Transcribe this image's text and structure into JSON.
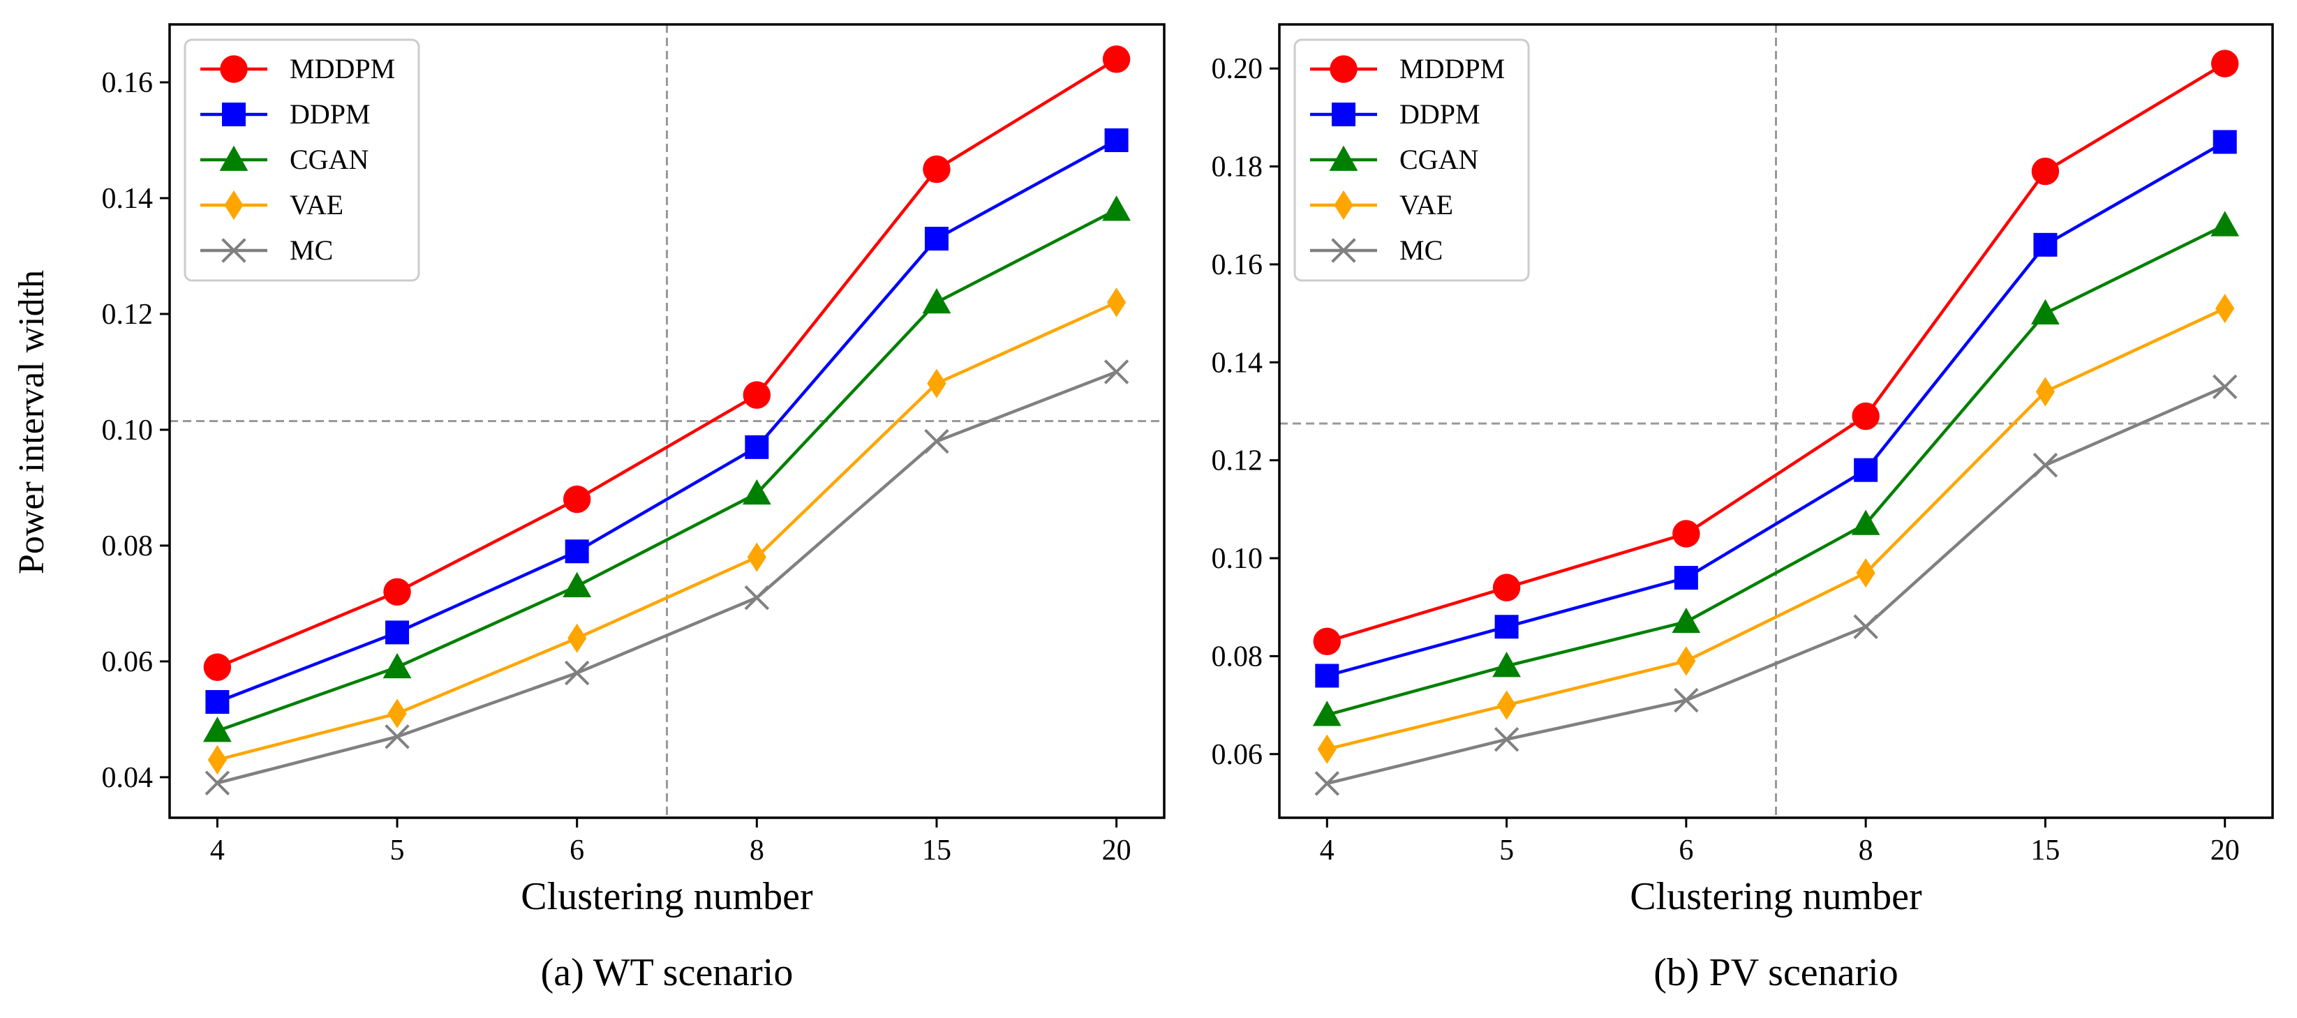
{
  "figure": {
    "ylabel": "Power interval width",
    "legend_position": "upper left"
  },
  "chart_data": [
    {
      "type": "line",
      "caption": "(a) WT scenario",
      "xlabel": "Clustering number",
      "ylabel": "Power interval width",
      "categories": [
        "4",
        "5",
        "6",
        "8",
        "15",
        "20"
      ],
      "ylim": [
        0.033,
        0.17
      ],
      "yticks": [
        0.04,
        0.06,
        0.08,
        0.1,
        0.12,
        0.14,
        0.16
      ],
      "yticklabels": [
        "0.04",
        "0.06",
        "0.08",
        "0.10",
        "0.12",
        "0.14",
        "0.16"
      ],
      "reference_lines": {
        "vertical_between_categories": [
          "6",
          "8"
        ],
        "horizontal_y": 0.1015
      },
      "series": [
        {
          "name": "MDDPM",
          "color": "#ff0000",
          "marker": "circle",
          "values": [
            0.059,
            0.072,
            0.088,
            0.106,
            0.145,
            0.164
          ]
        },
        {
          "name": "DDPM",
          "color": "#0000ff",
          "marker": "square",
          "values": [
            0.053,
            0.065,
            0.079,
            0.097,
            0.133,
            0.15
          ]
        },
        {
          "name": "CGAN",
          "color": "#008000",
          "marker": "triangle",
          "values": [
            0.048,
            0.059,
            0.073,
            0.089,
            0.122,
            0.138
          ]
        },
        {
          "name": "VAE",
          "color": "#ffa500",
          "marker": "diamond",
          "values": [
            0.043,
            0.051,
            0.064,
            0.078,
            0.108,
            0.122
          ]
        },
        {
          "name": "MC",
          "color": "#808080",
          "marker": "x",
          "values": [
            0.039,
            0.047,
            0.058,
            0.071,
            0.098,
            0.11
          ]
        }
      ]
    },
    {
      "type": "line",
      "caption": "(b) PV scenario",
      "xlabel": "Clustering number",
      "ylabel": "",
      "categories": [
        "4",
        "5",
        "6",
        "8",
        "15",
        "20"
      ],
      "ylim": [
        0.047,
        0.209
      ],
      "yticks": [
        0.06,
        0.08,
        0.1,
        0.12,
        0.14,
        0.16,
        0.18,
        0.2
      ],
      "yticklabels": [
        "0.06",
        "0.08",
        "0.10",
        "0.12",
        "0.14",
        "0.16",
        "0.18",
        "0.20"
      ],
      "reference_lines": {
        "vertical_between_categories": [
          "6",
          "8"
        ],
        "horizontal_y": 0.1275
      },
      "series": [
        {
          "name": "MDDPM",
          "color": "#ff0000",
          "marker": "circle",
          "values": [
            0.083,
            0.094,
            0.105,
            0.129,
            0.179,
            0.201
          ]
        },
        {
          "name": "DDPM",
          "color": "#0000ff",
          "marker": "square",
          "values": [
            0.076,
            0.086,
            0.096,
            0.118,
            0.164,
            0.185
          ]
        },
        {
          "name": "CGAN",
          "color": "#008000",
          "marker": "triangle",
          "values": [
            0.068,
            0.078,
            0.087,
            0.107,
            0.15,
            0.168
          ]
        },
        {
          "name": "VAE",
          "color": "#ffa500",
          "marker": "diamond",
          "values": [
            0.061,
            0.07,
            0.079,
            0.097,
            0.134,
            0.151
          ]
        },
        {
          "name": "MC",
          "color": "#808080",
          "marker": "x",
          "values": [
            0.054,
            0.063,
            0.071,
            0.086,
            0.119,
            0.135
          ]
        }
      ]
    }
  ]
}
